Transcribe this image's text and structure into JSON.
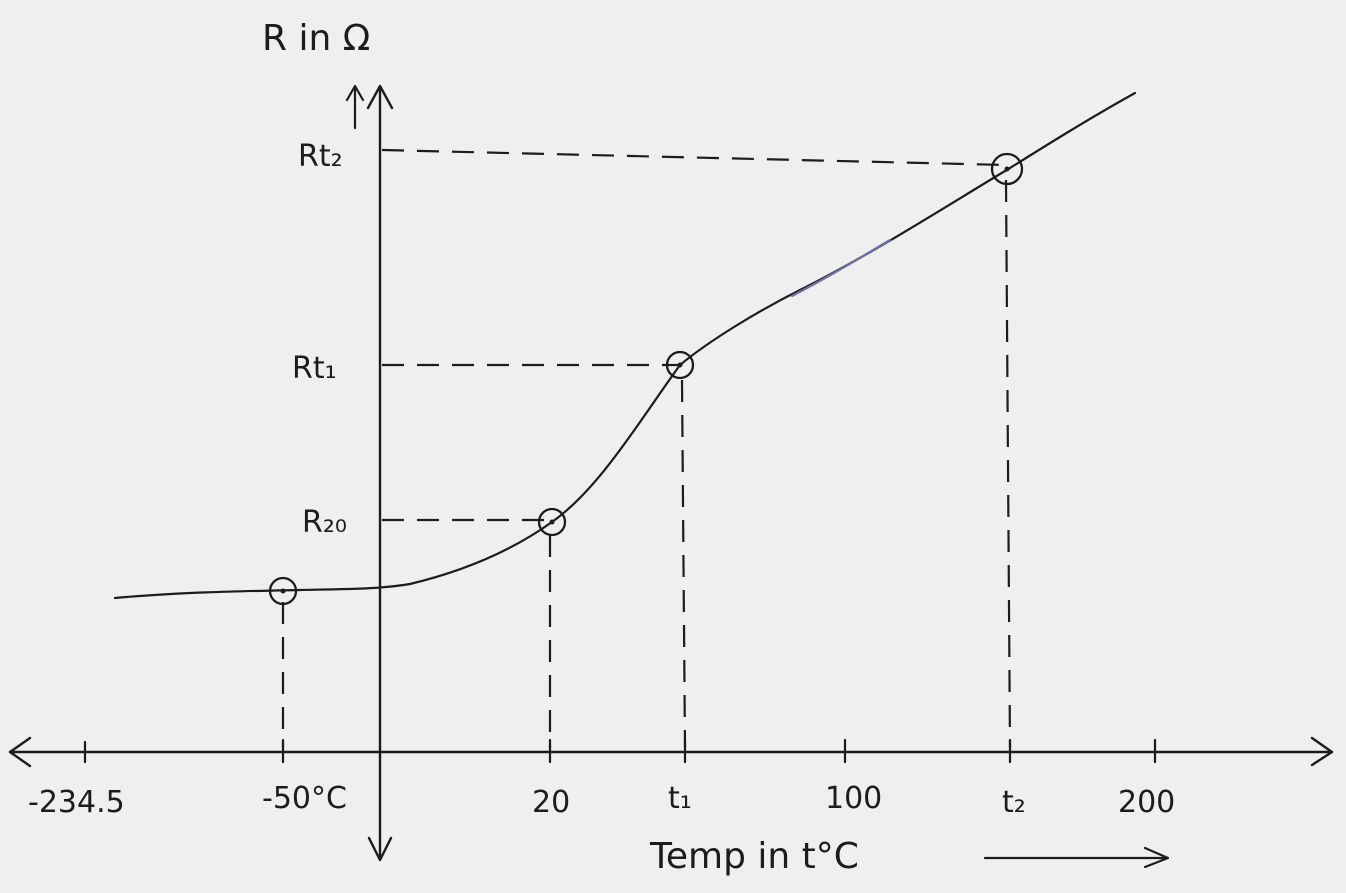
{
  "chart_data": {
    "type": "line",
    "y_axis_label": "R in Ω",
    "x_axis_label": "Temp in t°C",
    "x_tick_labels": [
      "-234.5",
      "-50°C",
      "20",
      "t₁",
      "100",
      "t₂",
      "200"
    ],
    "y_tick_labels": [
      "R₂₀",
      "Rt₁",
      "Rt₂"
    ],
    "marked_points": [
      {
        "x": "-50°C",
        "y": ""
      },
      {
        "x": "20",
        "y": "R₂₀"
      },
      {
        "x": "t₁",
        "y": "Rt₁"
      },
      {
        "x": "t₂",
        "y": "Rt₂"
      }
    ],
    "grid": false,
    "legend": "none"
  },
  "colors": {
    "paper": "#efefef",
    "ink": "#1c1c1c",
    "highlight": "#6f6fa3"
  }
}
